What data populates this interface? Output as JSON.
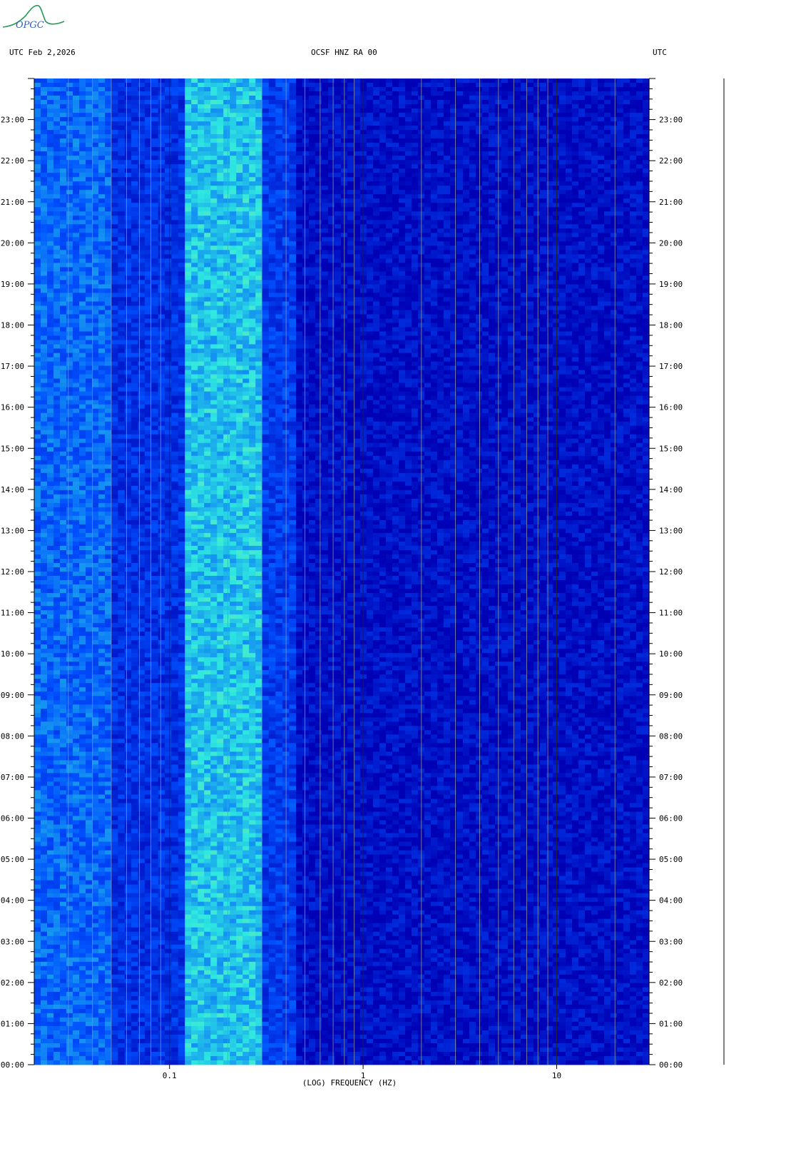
{
  "header": {
    "left": "UTC  Feb 2,2026",
    "center": "OCSF HNZ RA 00",
    "right": "UTC",
    "logo_text": "OPGC"
  },
  "chart_data": {
    "type": "heatmap",
    "xlabel": "(LOG) FREQUENCY (HZ)",
    "x_scale": "log",
    "xlim": [
      0.02,
      30
    ],
    "x_tick_labels": [
      {
        "value": 0.1,
        "label": "0.1"
      },
      {
        "value": 1,
        "label": "1"
      },
      {
        "value": 10,
        "label": "10"
      }
    ],
    "ylim_hours": [
      0,
      24
    ],
    "y_tick_labels": [
      "00:00",
      "01:00",
      "02:00",
      "03:00",
      "04:00",
      "05:00",
      "06:00",
      "07:00",
      "08:00",
      "09:00",
      "10:00",
      "11:00",
      "12:00",
      "13:00",
      "14:00",
      "15:00",
      "16:00",
      "17:00",
      "18:00",
      "19:00",
      "20:00",
      "21:00",
      "22:00",
      "23:00"
    ],
    "bands": [
      {
        "freq_range": [
          0.02,
          0.05
        ],
        "intensity": 0.45
      },
      {
        "freq_range": [
          0.05,
          0.12
        ],
        "intensity": 0.25
      },
      {
        "freq_range": [
          0.12,
          0.3
        ],
        "intensity": 0.7
      },
      {
        "freq_range": [
          0.3,
          0.45
        ],
        "intensity": 0.3
      },
      {
        "freq_range": [
          0.45,
          30
        ],
        "intensity": 0.08
      }
    ],
    "colors": {
      "low": "#0000b4",
      "mid": "#0050ff",
      "high": "#2ee8e0",
      "peak": "#b8f070"
    }
  }
}
